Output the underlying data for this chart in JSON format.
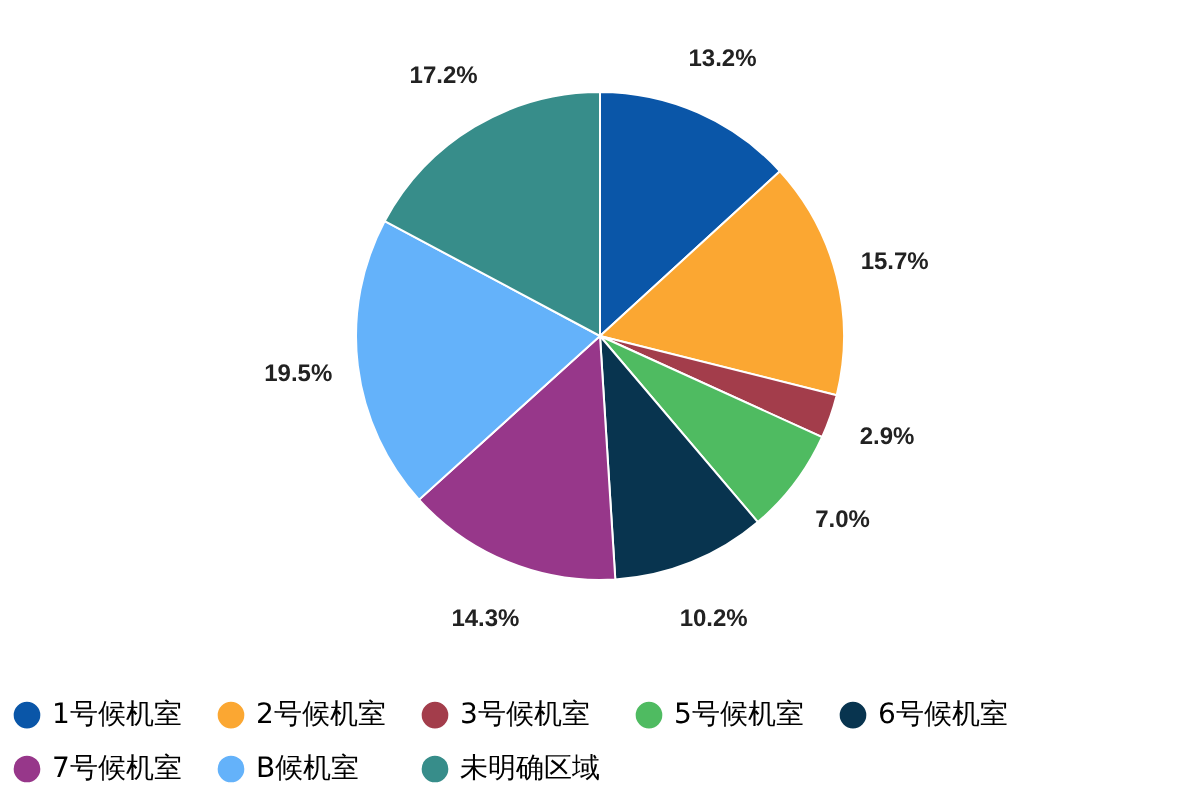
{
  "chart_data": {
    "type": "pie",
    "categories": [
      "1号候机室",
      "2号候机室",
      "3号候机室",
      "5号候机室",
      "6号候机室",
      "7号候机室",
      "B候机室",
      "未明确区域"
    ],
    "values": [
      13.2,
      15.7,
      2.9,
      7.0,
      10.2,
      14.3,
      19.5,
      17.2
    ],
    "value_labels": [
      "13.2%",
      "15.7%",
      "2.9%",
      "7.0%",
      "10.2%",
      "14.3%",
      "19.5%",
      "17.2%"
    ],
    "colors": [
      "#0a56a8",
      "#fba732",
      "#a33d4b",
      "#4fbb61",
      "#08344f",
      "#97378a",
      "#64b2fa",
      "#378d8a"
    ],
    "legend": "bottom"
  }
}
